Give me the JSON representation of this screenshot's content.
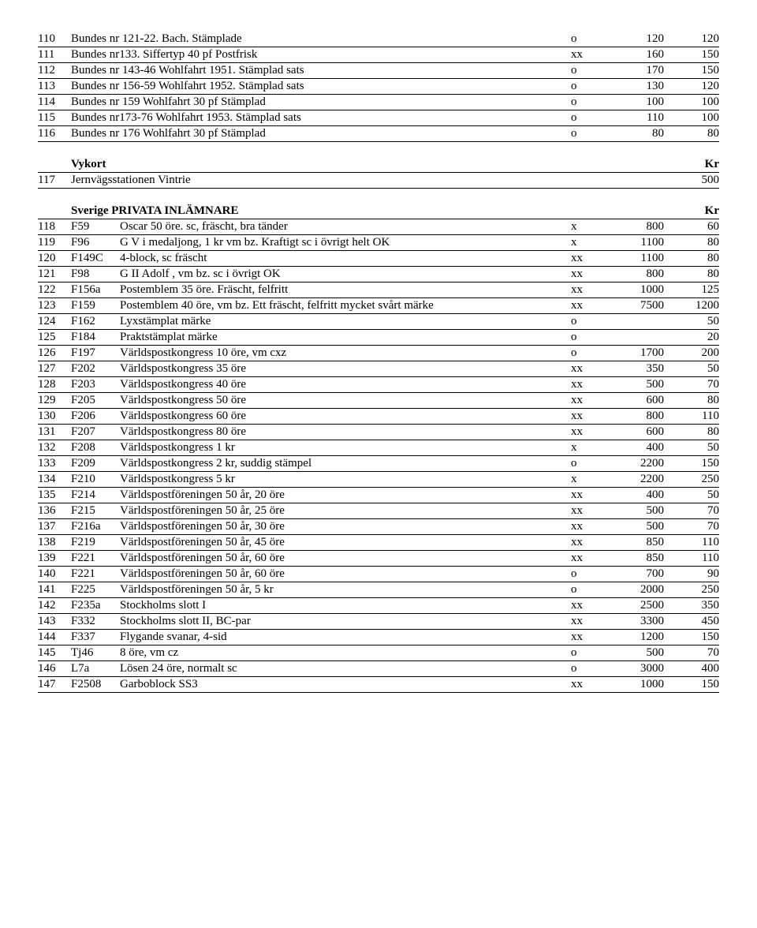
{
  "block1": {
    "rows": [
      {
        "num": "110",
        "code": "",
        "desc": "Bundes nr 121-22. Bach. Stämplade",
        "cond": "o",
        "p1": "120",
        "p2": "120"
      },
      {
        "num": "111",
        "code": "",
        "desc": "Bundes nr133. Siffertyp 40 pf  Postfrisk",
        "cond": "xx",
        "p1": "160",
        "p2": "150"
      },
      {
        "num": "112",
        "code": "",
        "desc": "Bundes nr 143-46 Wohlfahrt 1951. Stämplad sats",
        "cond": "o",
        "p1": "170",
        "p2": "150"
      },
      {
        "num": "113",
        "code": "",
        "desc": "Bundes nr 156-59 Wohlfahrt 1952. Stämplad sats",
        "cond": "o",
        "p1": "130",
        "p2": "120"
      },
      {
        "num": "114",
        "code": "",
        "desc": "Bundes nr  159  Wohlfahrt  30 pf   Stämplad",
        "cond": "o",
        "p1": "100",
        "p2": "100"
      },
      {
        "num": "115",
        "code": "",
        "desc": "Bundes nr173-76  Wohlfahrt 1953. Stämplad sats",
        "cond": "o",
        "p1": "110",
        "p2": "100"
      },
      {
        "num": "116",
        "code": "",
        "desc": "Bundes nr  176  Wohlfahrt 30 pf  Stämplad",
        "cond": "o",
        "p1": "80",
        "p2": "80"
      }
    ]
  },
  "block2": {
    "heading": "Vykort",
    "headingRight": "Kr",
    "rows": [
      {
        "num": "117",
        "code": "",
        "desc": "Jernvägsstationen Vintrie",
        "cond": "",
        "p1": "",
        "p2": "500"
      }
    ]
  },
  "block3": {
    "heading": "Sverige  PRIVATA INLÄMNARE",
    "headingRight": "Kr",
    "rows": [
      {
        "num": "118",
        "code": "F59",
        "desc": "Oscar  50 öre.  sc, fräscht, bra tänder",
        "cond": "x",
        "p1": "800",
        "p2": "60"
      },
      {
        "num": "119",
        "code": "F96",
        "desc": "G V i medaljong, 1 kr  vm bz. Kraftigt sc i övrigt helt OK",
        "cond": "x",
        "p1": "1100",
        "p2": "80"
      },
      {
        "num": "120",
        "code": "F149C",
        "desc": "4-block, sc fräscht",
        "cond": "xx",
        "p1": "1100",
        "p2": "80"
      },
      {
        "num": "121",
        "code": "F98",
        "desc": "G II Adolf , vm bz.   sc i övrigt OK",
        "cond": "xx",
        "p1": "800",
        "p2": "80"
      },
      {
        "num": "122",
        "code": "F156a",
        "desc": "Postemblem 35 öre.    Fräscht, felfritt",
        "cond": "xx",
        "p1": "1000",
        "p2": "125"
      },
      {
        "num": "123",
        "code": "F159",
        "desc": "Postemblem 40 öre, vm bz. Ett fräscht, felfritt mycket svårt märke",
        "cond": "xx",
        "p1": "7500",
        "p2": "1200"
      },
      {
        "num": "124",
        "code": "F162",
        "desc": "Lyxstämplat märke",
        "cond": "o",
        "p1": "",
        "p2": "50"
      },
      {
        "num": "125",
        "code": "F184",
        "desc": "Praktstämplat märke",
        "cond": "o",
        "p1": "",
        "p2": "20"
      },
      {
        "num": "126",
        "code": "F197",
        "desc": "Världspostkongress 10 öre, vm cxz",
        "cond": "o",
        "p1": "1700",
        "p2": "200"
      },
      {
        "num": "127",
        "code": "F202",
        "desc": "Världspostkongress 35 öre",
        "cond": "xx",
        "p1": "350",
        "p2": "50"
      },
      {
        "num": "128",
        "code": "F203",
        "desc": "Världspostkongress 40 öre",
        "cond": "xx",
        "p1": "500",
        "p2": "70"
      },
      {
        "num": "129",
        "code": "F205",
        "desc": "Världspostkongress  50 öre",
        "cond": "xx",
        "p1": "600",
        "p2": "80"
      },
      {
        "num": "130",
        "code": "F206",
        "desc": "Världspostkongress  60 öre",
        "cond": "xx",
        "p1": "800",
        "p2": "110"
      },
      {
        "num": "131",
        "code": "F207",
        "desc": "Världspostkongress  80 öre",
        "cond": "xx",
        "p1": "600",
        "p2": "80"
      },
      {
        "num": "132",
        "code": "F208",
        "desc": "Världspostkongress  1 kr",
        "cond": "x",
        "p1": "400",
        "p2": "50"
      },
      {
        "num": "133",
        "code": "F209",
        "desc": "Världspostkongress  2 kr, suddig stämpel",
        "cond": "o",
        "p1": "2200",
        "p2": "150"
      },
      {
        "num": "134",
        "code": "F210",
        "desc": "Världspostkongress  5 kr",
        "cond": "x",
        "p1": "2200",
        "p2": "250"
      },
      {
        "num": "135",
        "code": "F214",
        "desc": "Världspostföreningen 50 år, 20 öre",
        "cond": "xx",
        "p1": "400",
        "p2": "50"
      },
      {
        "num": "136",
        "code": "F215",
        "desc": "Världspostföreningen 50 år, 25 öre",
        "cond": "xx",
        "p1": "500",
        "p2": "70"
      },
      {
        "num": "137",
        "code": "F216a",
        "desc": "Världspostföreningen 50 år, 30 öre",
        "cond": "xx",
        "p1": "500",
        "p2": "70"
      },
      {
        "num": "138",
        "code": "F219",
        "desc": "Världspostföreningen 50 år, 45 öre",
        "cond": "xx",
        "p1": "850",
        "p2": "110"
      },
      {
        "num": "139",
        "code": "F221",
        "desc": "Världspostföreningen 50 år, 60 öre",
        "cond": "xx",
        "p1": "850",
        "p2": "110"
      },
      {
        "num": "140",
        "code": "F221",
        "desc": "Världspostföreningen 50 år, 60 öre",
        "cond": "o",
        "p1": "700",
        "p2": "90"
      },
      {
        "num": "141",
        "code": "F225",
        "desc": "Världspostföreningen 50 år, 5 kr",
        "cond": "o",
        "p1": "2000",
        "p2": "250"
      },
      {
        "num": "142",
        "code": "F235a",
        "desc": "Stockholms slott I",
        "cond": "xx",
        "p1": "2500",
        "p2": "350"
      },
      {
        "num": "143",
        "code": "F332",
        "desc": "Stockholms slott II, BC-par",
        "cond": "xx",
        "p1": "3300",
        "p2": "450"
      },
      {
        "num": "144",
        "code": "F337",
        "desc": "Flygande svanar, 4-sid",
        "cond": "xx",
        "p1": "1200",
        "p2": "150"
      },
      {
        "num": "145",
        "code": "Tj46",
        "desc": "8 öre, vm cz",
        "cond": "o",
        "p1": "500",
        "p2": "70"
      },
      {
        "num": "146",
        "code": "L7a",
        "desc": "Lösen 24 öre, normalt sc",
        "cond": "o",
        "p1": "3000",
        "p2": "400"
      },
      {
        "num": "147",
        "code": "F2508",
        "desc": "Garboblock  SS3",
        "cond": "xx",
        "p1": "1000",
        "p2": "150"
      }
    ]
  }
}
